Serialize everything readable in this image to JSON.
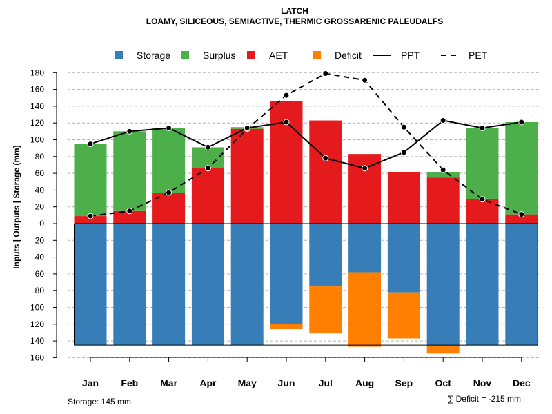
{
  "chart_data": {
    "type": "bar",
    "title": "LATCH",
    "subtitle": "LOAMY, SILICEOUS, SEMIACTIVE, THERMIC GROSSARENIC PALEUDALFS",
    "ylabel": "Inputs | Outputs | Storage    (mm)",
    "categories": [
      "Jan",
      "Feb",
      "Mar",
      "Apr",
      "May",
      "Jun",
      "Jul",
      "Aug",
      "Sep",
      "Oct",
      "Nov",
      "Dec"
    ],
    "ylim_top": [
      0,
      180
    ],
    "ylim_bottom": [
      0,
      160
    ],
    "yticks_top": [
      "0",
      "20",
      "40",
      "60",
      "80",
      "100",
      "120",
      "140",
      "160",
      "180"
    ],
    "yticks_bottom": [
      "20",
      "40",
      "60",
      "80",
      "100",
      "120",
      "140",
      "160"
    ],
    "legend": [
      {
        "key": "storage",
        "label": "Storage",
        "kind": "box",
        "color": "#377EB8"
      },
      {
        "key": "surplus",
        "label": "Surplus",
        "kind": "box",
        "color": "#4DAF4A"
      },
      {
        "key": "aet",
        "label": "AET",
        "kind": "box",
        "color": "#E41A1C"
      },
      {
        "key": "deficit",
        "label": "Deficit",
        "kind": "box",
        "color": "#FF7F00"
      },
      {
        "key": "ppt",
        "label": "PPT",
        "kind": "solid-line",
        "color": "#000000"
      },
      {
        "key": "pet",
        "label": "PET",
        "kind": "dashed-line",
        "color": "#000000"
      }
    ],
    "series": {
      "aet": [
        9,
        15,
        37,
        66,
        113,
        146,
        123,
        83,
        61,
        55,
        29,
        11
      ],
      "surplus": [
        86,
        95,
        77,
        25,
        2,
        0,
        0,
        0,
        0,
        6,
        85,
        110
      ],
      "storage": [
        145,
        145,
        145,
        145,
        145,
        120,
        75,
        58,
        82,
        145,
        145,
        145
      ],
      "deficit": [
        0,
        0,
        0,
        0,
        0,
        6,
        56,
        89,
        55,
        10,
        0,
        0
      ],
      "ppt": [
        95,
        110,
        114,
        91,
        114,
        121,
        78,
        66,
        85,
        123,
        114,
        121
      ],
      "pet": [
        9,
        15,
        37,
        66,
        113,
        153,
        179,
        171,
        115,
        64,
        29,
        11
      ]
    },
    "storage_capacity": 145,
    "footnote_left": "Storage: 145 mm",
    "footnote_right": "∑ Deficit = -215 mm"
  }
}
